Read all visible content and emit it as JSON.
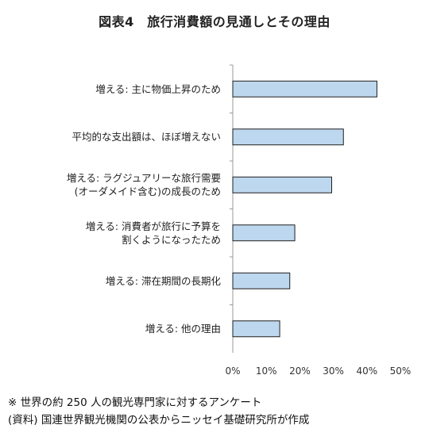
{
  "title": "図表4　旅行消費額の見通しとその理由",
  "notes": {
    "line1": "※ 世界の約 250 人の観光専門家に対するアンケート",
    "line2": "(資料) 国連世界観光機関の公表からニッセイ基礎研究所が作成"
  },
  "chart_data": {
    "type": "bar",
    "orientation": "horizontal",
    "categories": [
      [
        "増える: 主に物価上昇のため"
      ],
      [
        "平均的な支出額は、ほぼ増えない"
      ],
      [
        "増える: ラグジュアリーな旅行需要",
        "(オーダメイド含む)の成長のため"
      ],
      [
        "増える: 消費者が旅行に予算を",
        "割くようになったため"
      ],
      [
        "増える: 滞在期間の長期化"
      ],
      [
        "増える: 他の理由"
      ]
    ],
    "values": [
      43,
      33,
      29.5,
      18.5,
      17,
      14
    ],
    "xlim": [
      0,
      50
    ],
    "xticks": [
      "0%",
      "10%",
      "20%",
      "30%",
      "40%",
      "50%"
    ],
    "grid": false,
    "legend": "none",
    "bar_color": "#bdd7ee",
    "bar_edge_color": "#1f1f1f",
    "axis_color": "#9a9a9a"
  }
}
